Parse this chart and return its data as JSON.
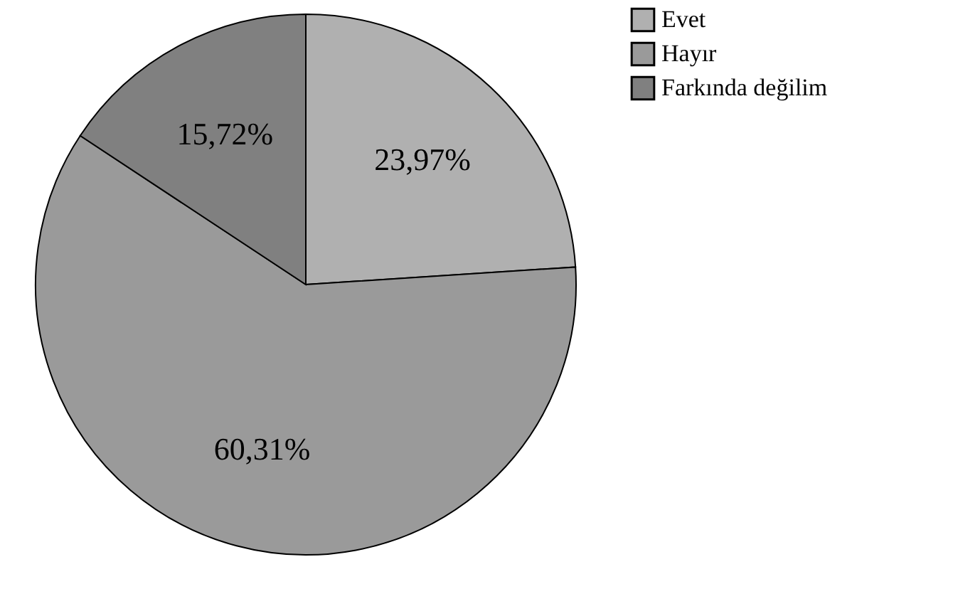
{
  "chart_data": {
    "type": "pie",
    "categories": [
      "Evet",
      "Hayır",
      "Farkında değilim"
    ],
    "values": [
      23.97,
      60.31,
      15.72
    ],
    "value_labels": [
      "23,97%",
      "60,31%",
      "15,72%"
    ],
    "colors": [
      "#b0b0b0",
      "#9a9a9a",
      "#808080"
    ],
    "legend": "right"
  }
}
